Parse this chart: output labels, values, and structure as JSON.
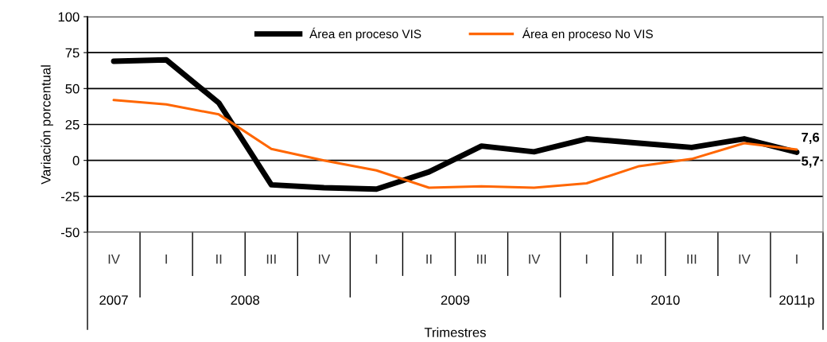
{
  "chart_data": {
    "type": "line",
    "ylabel": "Variación porcentual",
    "xlabel": "Trimestres",
    "categories": [
      "IV",
      "I",
      "II",
      "III",
      "IV",
      "I",
      "II",
      "III",
      "IV",
      "I",
      "II",
      "III",
      "IV",
      "I"
    ],
    "series": [
      {
        "name": "Área en proceso VIS",
        "color": "#000000",
        "values": [
          69,
          70,
          40,
          -17,
          -19,
          -20,
          -8,
          10,
          6,
          15,
          12,
          9,
          15,
          5.7
        ],
        "value_labels": [
          null,
          null,
          null,
          null,
          null,
          null,
          null,
          null,
          null,
          null,
          null,
          null,
          null,
          "5,7"
        ]
      },
      {
        "name": "Área en proceso No VIS",
        "color": "#ff6600",
        "values": [
          42,
          39,
          32,
          8,
          0,
          -7,
          -19,
          -18,
          -19,
          -16,
          -4,
          1,
          12,
          7.6
        ],
        "value_labels": [
          null,
          null,
          null,
          null,
          null,
          null,
          null,
          null,
          null,
          null,
          null,
          null,
          null,
          "7,6"
        ]
      }
    ],
    "ylim": [
      -50,
      100
    ],
    "yticks": [
      -50,
      -25,
      0,
      25,
      50,
      75,
      100
    ],
    "grid": "y",
    "legend": "top",
    "annotations": [
      "2007",
      "2008",
      "2009",
      "2010",
      "2011p"
    ]
  }
}
